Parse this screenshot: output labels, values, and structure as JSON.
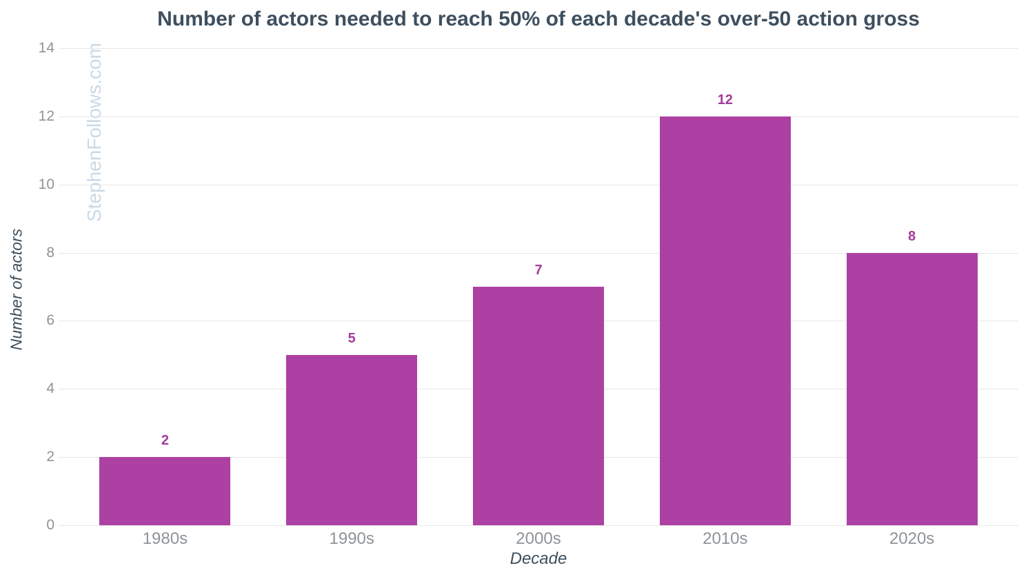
{
  "figure": {
    "watermark": "StephenFollows.com"
  },
  "chart_data": {
    "type": "bar",
    "title": "Number of actors needed to reach 50% of each decade's over-50 action gross",
    "categories": [
      "1980s",
      "1990s",
      "2000s",
      "2010s",
      "2020s"
    ],
    "values": [
      2,
      5,
      7,
      12,
      8
    ],
    "bar_labels": [
      "2",
      "5",
      "7",
      "12",
      "8"
    ],
    "xlabel": "Decade",
    "ylabel": "Number of actors",
    "ylim": [
      0,
      14
    ],
    "yticks": [
      0,
      2,
      4,
      6,
      8,
      10,
      12,
      14
    ],
    "grid": true,
    "legend": "none",
    "colors": {
      "bar": "#ad40a3",
      "bar_label": "#a43b9b",
      "title": "#3e4f5e",
      "axis_title": "#3e4f5e",
      "tick_label": "#8e9398",
      "gridline": "#e7e7e7",
      "watermark": "#c9d9e8",
      "background": "#ffffff"
    }
  }
}
